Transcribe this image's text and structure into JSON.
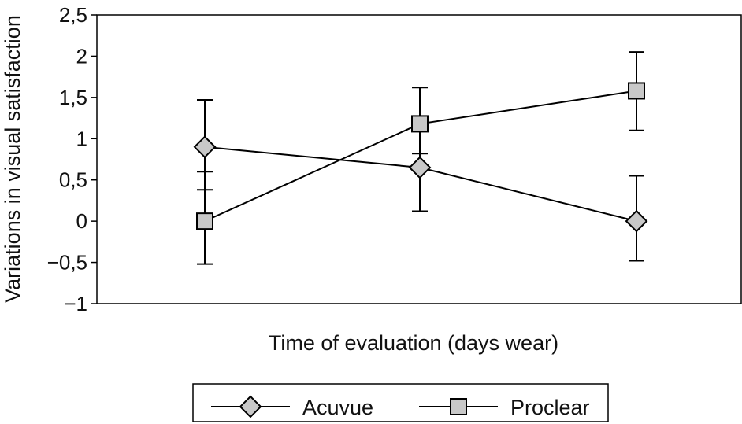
{
  "chart_data": {
    "type": "line",
    "title": "",
    "xlabel": "Time of evaluation (days wear)",
    "ylabel": "Variations in visual satisfaction",
    "ylim": [
      -1,
      2.5
    ],
    "y_ticks": [
      -1,
      -0.5,
      0,
      0.5,
      1,
      1.5,
      2,
      2.5
    ],
    "y_tick_labels": [
      "−1",
      "−0,5",
      "0",
      "0,5",
      "1",
      "1,5",
      "2",
      "2,5"
    ],
    "x_points": 3,
    "grid": false,
    "legend_position": "bottom",
    "series": [
      {
        "name": "Acuvue",
        "marker": "diamond",
        "values": [
          0.9,
          0.65,
          0.0
        ],
        "error_low": [
          0.38,
          0.12,
          -0.48
        ],
        "error_high": [
          1.47,
          0.82,
          0.55
        ]
      },
      {
        "name": "Proclear",
        "marker": "square",
        "values": [
          0.0,
          1.18,
          1.58
        ],
        "error_low": [
          -0.52,
          0.82,
          1.1
        ],
        "error_high": [
          0.6,
          1.62,
          2.05
        ]
      }
    ],
    "colors": {
      "marker_fill": "#c8c8c8",
      "line": "#000000"
    }
  }
}
